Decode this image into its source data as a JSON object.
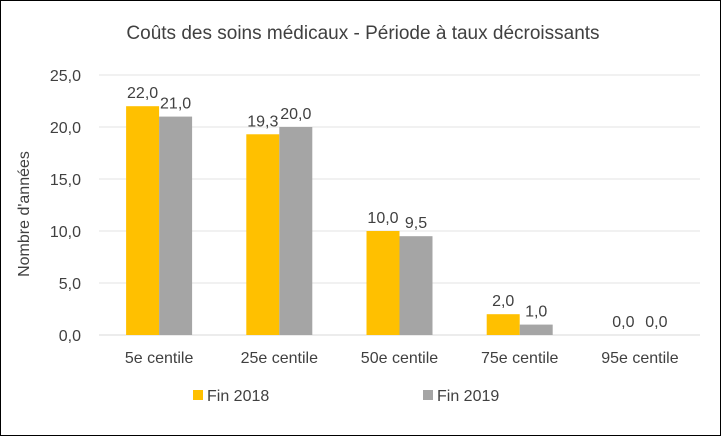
{
  "chart_data": {
    "type": "bar",
    "title": "Coûts des soins médicaux - Période à taux décroissants",
    "xlabel": "",
    "ylabel": "Nombre d'années",
    "categories": [
      "5e centile",
      "25e centile",
      "50e centile",
      "75e centile",
      "95e centile"
    ],
    "series": [
      {
        "name": "Fin 2018",
        "color": "#FFC000",
        "values": [
          22.0,
          19.3,
          10.0,
          2.0,
          0.0
        ],
        "labels": [
          "22,0",
          "19,3",
          "10,0",
          "2,0",
          "0,0"
        ]
      },
      {
        "name": "Fin 2019",
        "color": "#A5A5A5",
        "values": [
          21.0,
          20.0,
          9.5,
          1.0,
          0.0
        ],
        "labels": [
          "21,0",
          "20,0",
          "9,5",
          "1,0",
          "0,0"
        ]
      }
    ],
    "ylim": [
      0,
      25
    ],
    "yticks": [
      0,
      5,
      10,
      15,
      20,
      25
    ],
    "ytick_labels": [
      "0,0",
      "5,0",
      "10,0",
      "15,0",
      "20,0",
      "25,0"
    ],
    "grid": true,
    "legend_position": "bottom"
  }
}
